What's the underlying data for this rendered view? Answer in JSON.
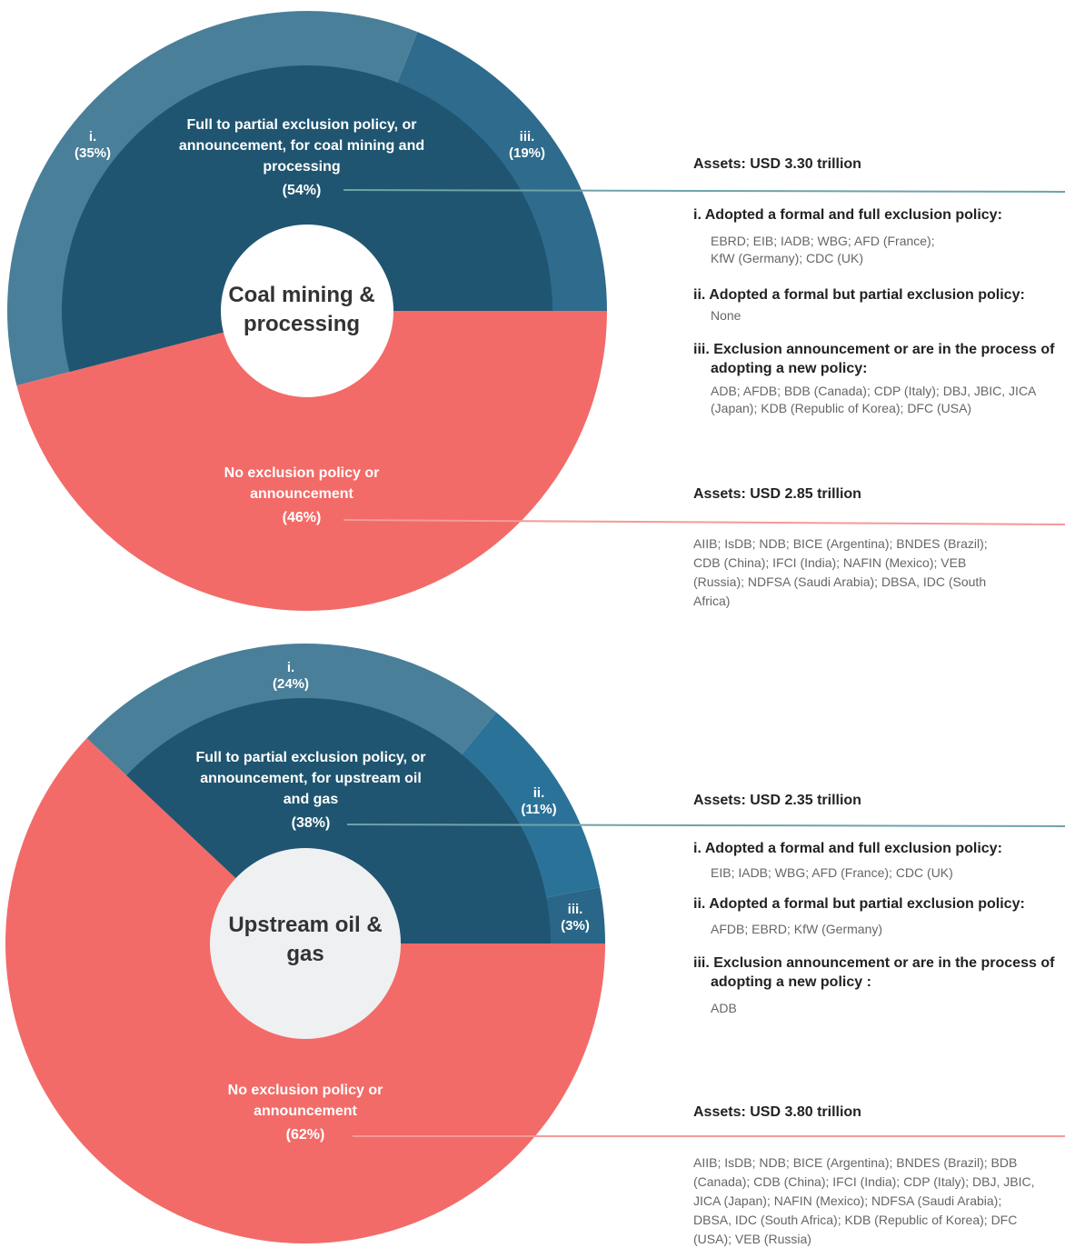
{
  "chart_data": [
    {
      "type": "donut",
      "center_label": "Coal mining & processing",
      "categories": [
        "Full to partial exclusion policy, or announcement, for coal mining and processing",
        "No exclusion policy or announcement"
      ],
      "values": [
        54,
        46
      ],
      "value_labels": [
        "(54%)",
        "(46%)"
      ],
      "colors": [
        "#1f5570",
        "#f26b68"
      ],
      "ring": {
        "categories": [
          "i.",
          "iii."
        ],
        "values": [
          35,
          19
        ],
        "value_labels": [
          "(35%)",
          "(19%)"
        ],
        "colors": [
          "#4a7f99",
          "#2e6b8c"
        ]
      },
      "notes": [
        {
          "assets": "Assets: USD 3.30 trillion",
          "items": [
            {
              "heading": "i. Adopted a formal and full exclusion policy:",
              "text": "EBRD; EIB; IADB; WBG; AFD (France); KfW (Germany); CDC (UK)"
            },
            {
              "heading": "ii. Adopted a formal but partial exclusion policy:",
              "text": "None"
            },
            {
              "heading": "iii. Exclusion announcement or are in the process of adopting a new policy:",
              "text": "ADB; AFDB; BDB (Canada); CDP (Italy); DBJ, JBIC, JICA (Japan); KDB (Republic of Korea); DFC (USA)"
            }
          ]
        },
        {
          "assets": "Assets: USD 2.85 trillion",
          "text": "AIIB; IsDB; NDB; BICE (Argentina); BNDES (Brazil); CDB (China); IFCI (India); NAFIN (Mexico); VEB (Russia); NDFSA (Saudi Arabia); DBSA, IDC (South Africa)"
        }
      ]
    },
    {
      "type": "donut",
      "center_label": "Upstream oil & gas",
      "categories": [
        "Full to partial exclusion policy, or announcement, for upstream oil and gas",
        "No exclusion policy or announcement"
      ],
      "values": [
        38,
        62
      ],
      "value_labels": [
        "(38%)",
        "(62%)"
      ],
      "colors": [
        "#1f5570",
        "#f26b68"
      ],
      "ring": {
        "categories": [
          "i.",
          "ii.",
          "iii."
        ],
        "values": [
          24,
          11,
          3
        ],
        "value_labels": [
          "(24%)",
          "(11%)",
          "(3%)"
        ],
        "colors": [
          "#4a7f99",
          "#2b7299",
          "#2a6688"
        ]
      },
      "notes": [
        {
          "assets": "Assets: USD 2.35 trillion",
          "items": [
            {
              "heading": "i. Adopted a formal and full exclusion policy:",
              "text": "EIB; IADB; WBG; AFD (France); CDC (UK)"
            },
            {
              "heading": "ii. Adopted a formal but partial exclusion policy:",
              "text": "AFDB; EBRD; KfW (Germany)"
            },
            {
              "heading": "iii. Exclusion announcement or are in the process of adopting a new policy :",
              "text": "ADB"
            }
          ]
        },
        {
          "assets": "Assets: USD 3.80 trillion",
          "text": "AIIB; IsDB; NDB; BICE (Argentina); BNDES (Brazil); BDB (Canada); CDB (China); IFCI (India); CDP (Italy); DBJ, JBIC, JICA (Japan); NAFIN (Mexico); NDFSA (Saudi Arabia); DBSA, IDC (South Africa); KDB (Republic of Korea); DFC (USA); VEB (Russia)"
        }
      ]
    }
  ]
}
